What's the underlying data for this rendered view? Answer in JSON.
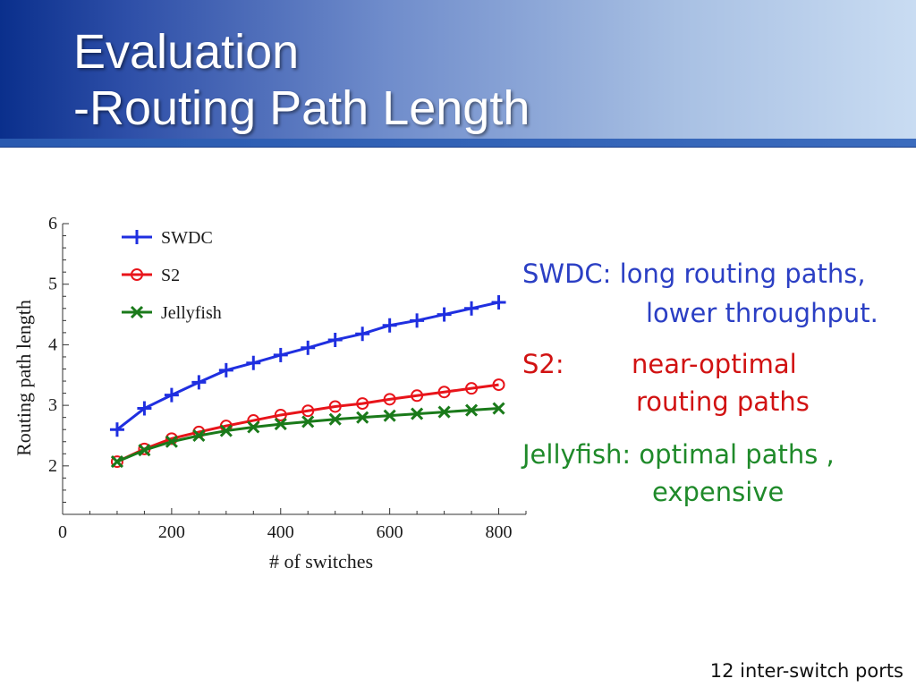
{
  "slide": {
    "title_line1": "Evaluation",
    "title_line2": "-Routing Path Length",
    "footnote": "12 inter-switch ports"
  },
  "notes": {
    "swdc_label": "SWDC:",
    "swdc_line1": "long routing paths,",
    "swdc_line2": "lower throughput.",
    "s2_label": "S2:",
    "s2_line1": "near-optimal",
    "s2_line2": "routing paths",
    "jelly_label": "Jellyfish:",
    "jelly_line1": "optimal paths ,",
    "jelly_line2": "expensive",
    "colors": {
      "swdc": "#2b3fc4",
      "s2": "#d11212",
      "jellyfish": "#1f8a2a"
    }
  },
  "chart_data": {
    "type": "line",
    "xlabel": "# of switches",
    "ylabel": "Routing path length",
    "xlim": [
      0,
      850
    ],
    "ylim": [
      1.2,
      6
    ],
    "xticks": [
      0,
      200,
      400,
      600,
      800
    ],
    "yticks": [
      2,
      3,
      4,
      5,
      6
    ],
    "legend_position": "top-left",
    "x": [
      100,
      150,
      200,
      250,
      300,
      350,
      400,
      450,
      500,
      550,
      600,
      650,
      700,
      750,
      800
    ],
    "series": [
      {
        "name": "SWDC",
        "color": "#1f2fe0",
        "marker": "plus",
        "values": [
          2.6,
          2.95,
          3.17,
          3.38,
          3.58,
          3.7,
          3.83,
          3.95,
          4.08,
          4.18,
          4.32,
          4.4,
          4.5,
          4.6,
          4.7
        ]
      },
      {
        "name": "S2",
        "color": "#e8141a",
        "marker": "circle",
        "values": [
          2.07,
          2.28,
          2.45,
          2.56,
          2.66,
          2.75,
          2.84,
          2.91,
          2.98,
          3.03,
          3.1,
          3.16,
          3.22,
          3.28,
          3.34
        ]
      },
      {
        "name": "Jellyfish",
        "color": "#1a7a1a",
        "marker": "x",
        "values": [
          2.07,
          2.26,
          2.4,
          2.5,
          2.58,
          2.64,
          2.69,
          2.73,
          2.77,
          2.8,
          2.83,
          2.86,
          2.89,
          2.92,
          2.95
        ]
      }
    ]
  }
}
